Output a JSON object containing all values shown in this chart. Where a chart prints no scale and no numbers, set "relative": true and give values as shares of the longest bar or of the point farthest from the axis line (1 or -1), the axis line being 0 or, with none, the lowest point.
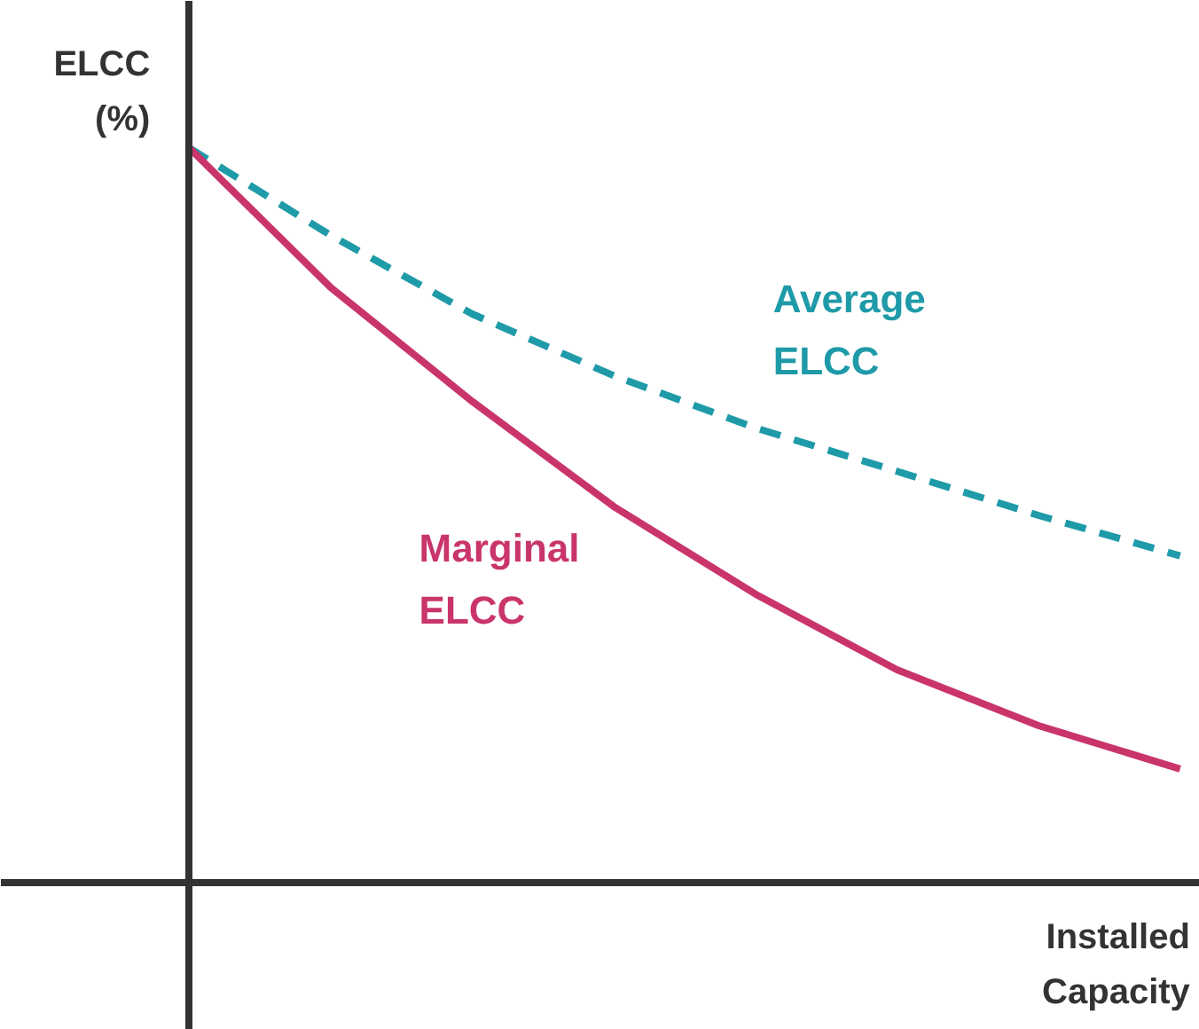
{
  "chart_data": {
    "type": "line",
    "relative": true,
    "ylabel": "ELCC\n(%)",
    "xlabel": "Installed\nCapacity",
    "categories": [
      null,
      null,
      null,
      null,
      null,
      null,
      null,
      null
    ],
    "series": [
      {
        "name": "Average\nELCC",
        "color": "#1f9aa8",
        "line_style": "dashed",
        "values": [
          1,
          0.881,
          0.774,
          0.69,
          0.619,
          0.56,
          0.5,
          0.445
        ]
      },
      {
        "name": "Marginal\nELCC",
        "color": "#c9356b",
        "line_style": "solid",
        "values": [
          1,
          0.81,
          0.655,
          0.512,
          0.393,
          0.29,
          0.214,
          0.155
        ]
      }
    ]
  }
}
